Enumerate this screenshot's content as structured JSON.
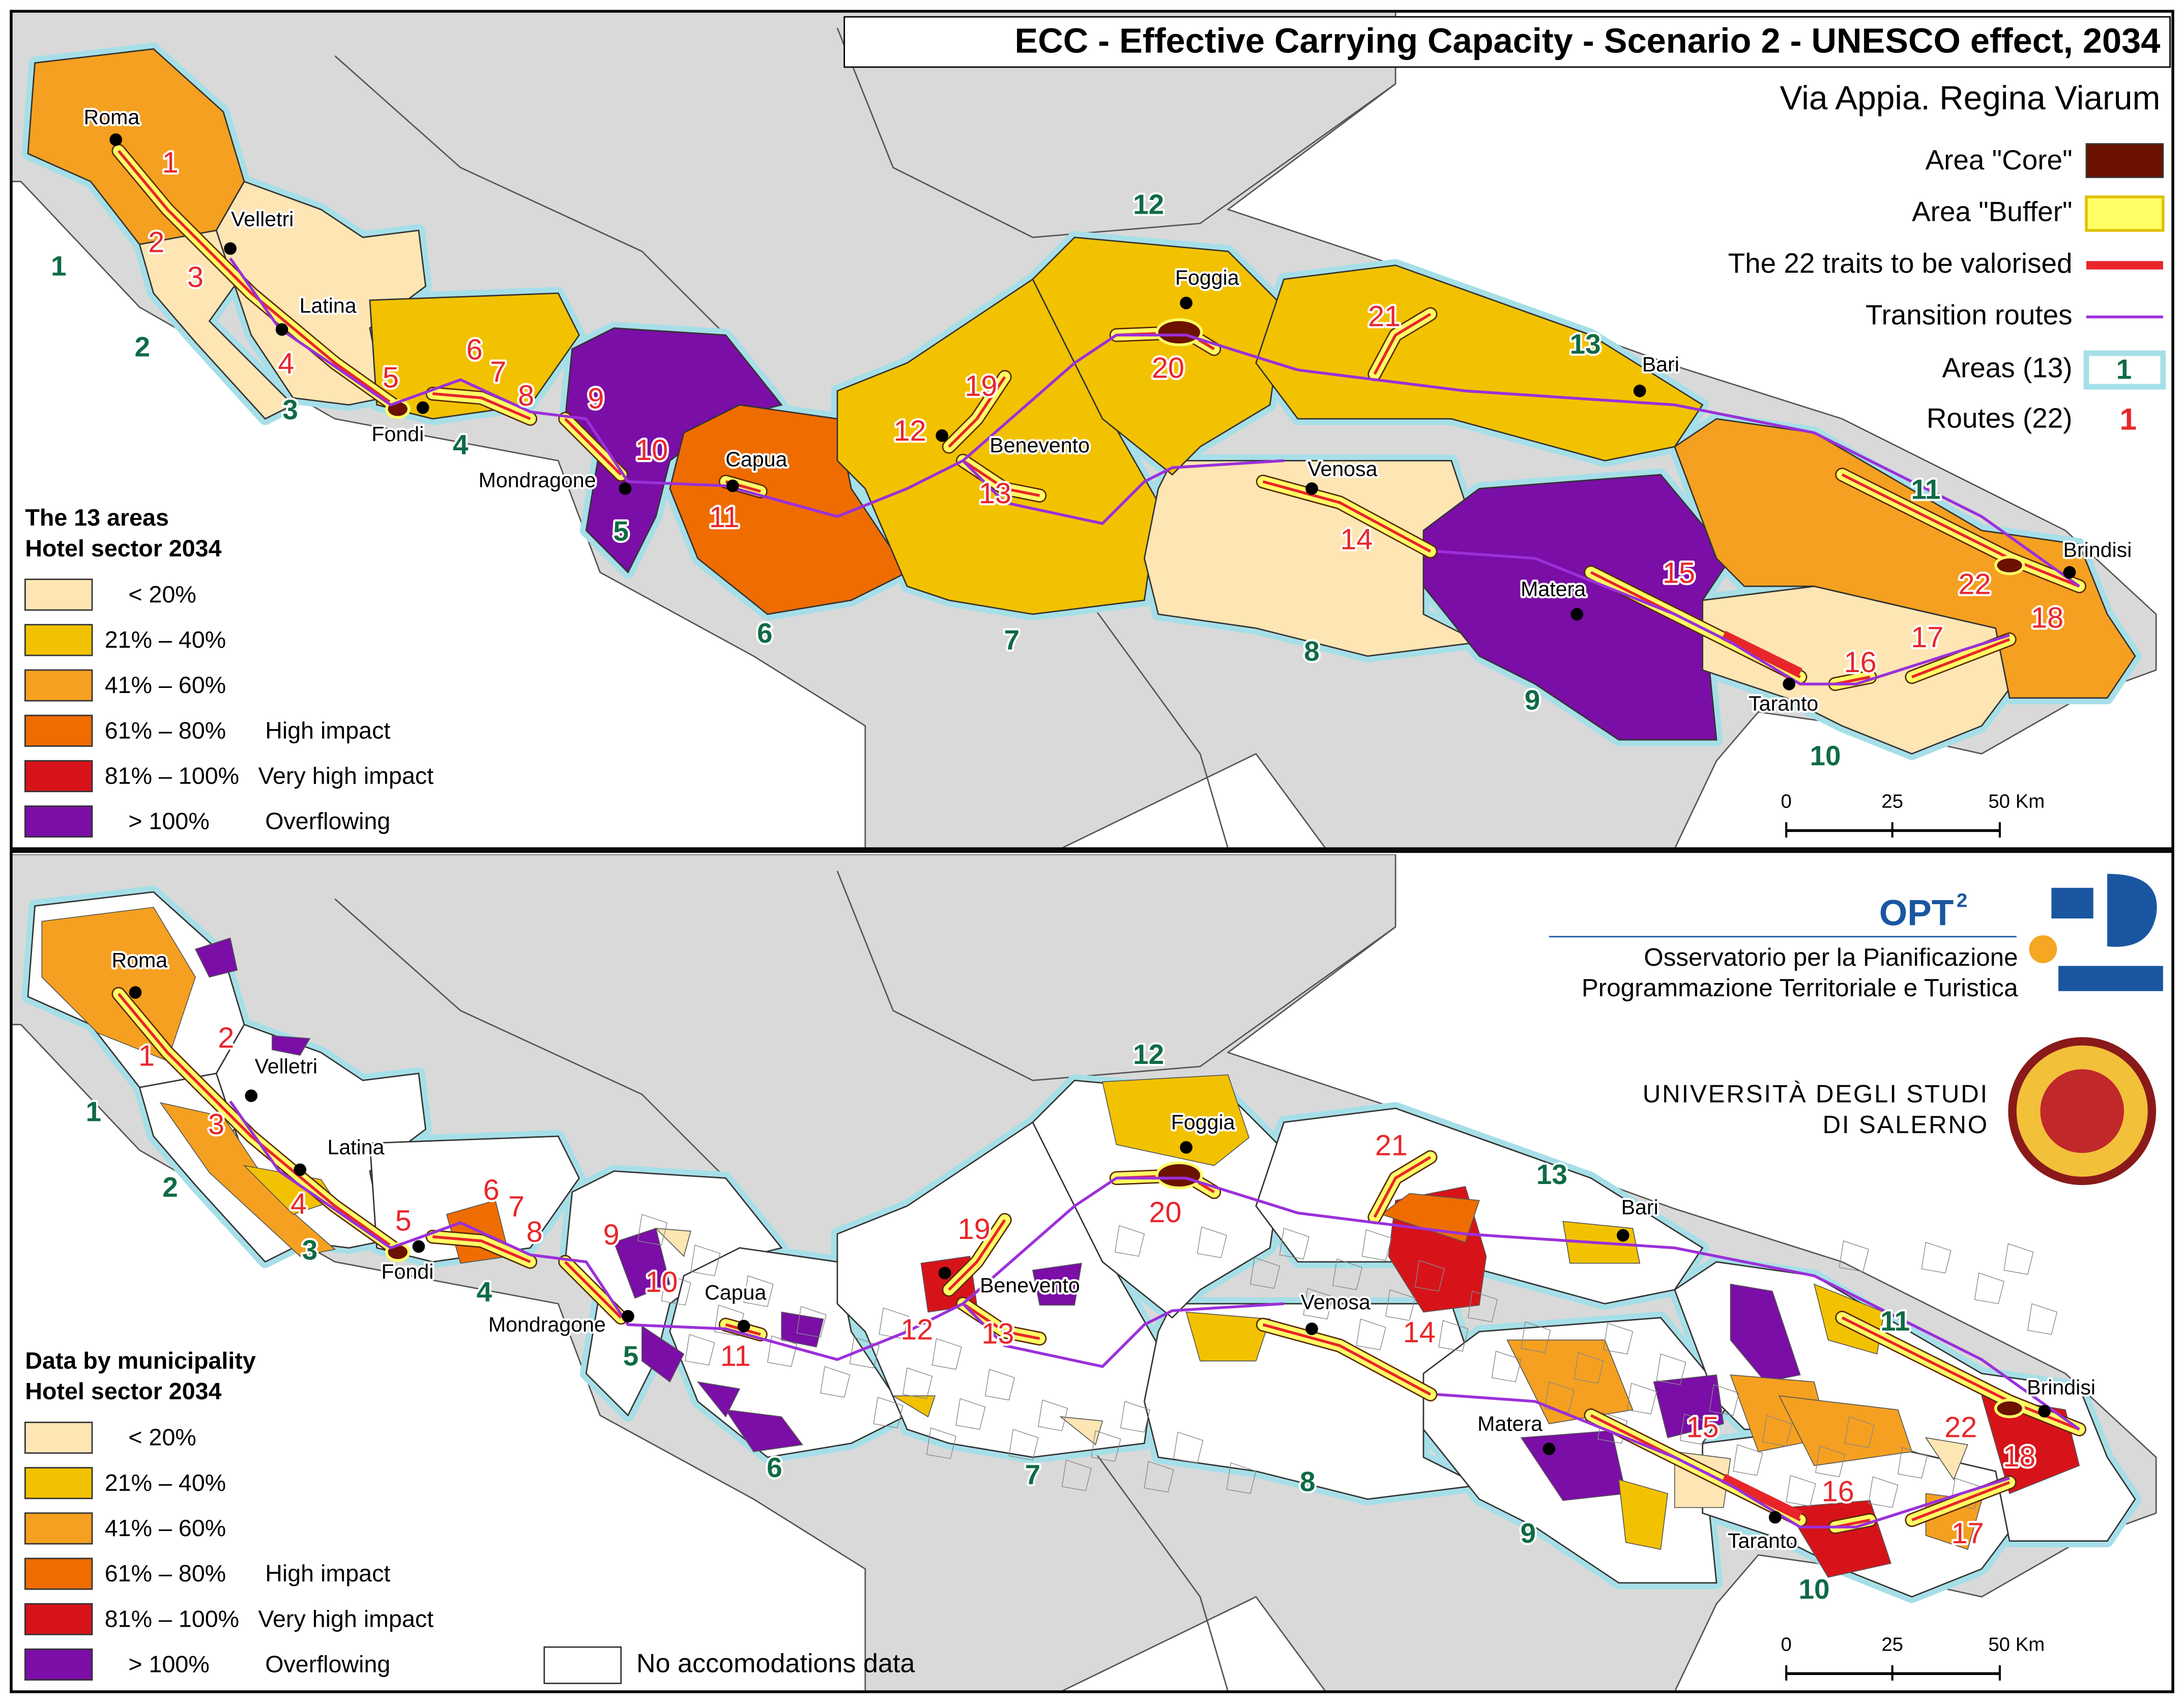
{
  "header": {
    "title": "ECC - Effective Carrying Capacity  - Scenario 2 - UNESCO effect, 2034",
    "subtitle": "Via Appia. Regina Viarum"
  },
  "key": [
    {
      "label": "Area \"Core\""
    },
    {
      "label": "Area \"Buffer\""
    },
    {
      "label": "The 22 traits to be valorised"
    },
    {
      "label": "Transition routes"
    },
    {
      "label": "Areas (13)",
      "symbol": "1"
    },
    {
      "label": "Routes (22)",
      "symbol": "1"
    }
  ],
  "legend": {
    "top_title": [
      "The 13 areas",
      "Hotel sector 2034"
    ],
    "bottom_title": [
      "Data by municipality",
      "Hotel sector 2034"
    ],
    "classes": [
      {
        "range": "< 20%",
        "color": "#fde5b4"
      },
      {
        "range": "21% – 40%",
        "color": "#f2c200"
      },
      {
        "range": "41% – 60%",
        "color": "#f5a020"
      },
      {
        "range": "61% – 80%",
        "note": "High impact",
        "color": "#ef6c00"
      },
      {
        "range": "81% – 100%",
        "note": "Very high impact",
        "color": "#d7131a"
      },
      {
        "range": "> 100%",
        "note": "Overflowing",
        "color": "#7a0ea6"
      }
    ],
    "no_data": "No accomodations data"
  },
  "cities": [
    "Roma",
    "Velletri",
    "Latina",
    "Fondi",
    "Mondragone",
    "Capua",
    "Benevento",
    "Foggia",
    "Venosa",
    "Bari",
    "Matera",
    "Taranto",
    "Brindisi"
  ],
  "areas": [
    "1",
    "2",
    "3",
    "4",
    "5",
    "6",
    "7",
    "8",
    "9",
    "10",
    "11",
    "12",
    "13"
  ],
  "routes": [
    "1",
    "2",
    "3",
    "4",
    "5",
    "6",
    "7",
    "8",
    "9",
    "10",
    "11",
    "12",
    "13",
    "14",
    "15",
    "16",
    "17",
    "18",
    "19",
    "20",
    "21",
    "22"
  ],
  "scale": [
    "0",
    "25",
    "50 Km"
  ],
  "logos": {
    "opt": "OPT",
    "opt_sup": "2",
    "opt_lines": [
      "Osservatorio per la Pianificazione",
      "Programmazione Territoriale e Turistica"
    ],
    "university": [
      "UNIVERSITÀ DEGLI STUDI",
      "DI SALERNO"
    ]
  }
}
